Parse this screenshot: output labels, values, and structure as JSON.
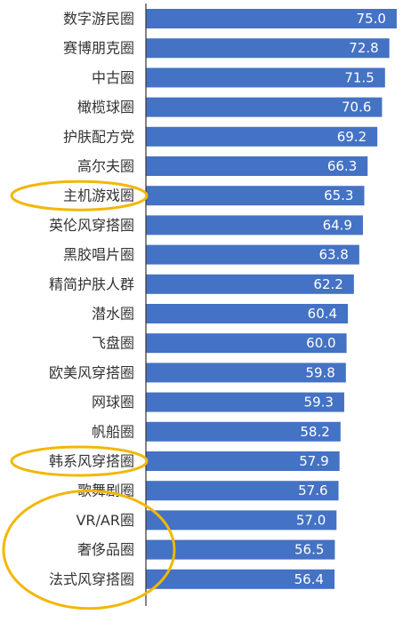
{
  "chart_data": {
    "type": "bar",
    "orientation": "horizontal",
    "categories": [
      "数字游民圈",
      "赛博朋克圈",
      "中古圈",
      "橄榄球圈",
      "护肤配方党",
      "高尔夫圈",
      "主机游戏圈",
      "英伦风穿搭圈",
      "黑胶唱片圈",
      "精简护肤人群",
      "潜水圈",
      "飞盘圈",
      "欧美风穿搭圈",
      "网球圈",
      "帆船圈",
      "韩系风穿搭圈",
      "歌舞剧圈",
      "VR/AR圈",
      "奢侈品圈",
      "法式风穿搭圈"
    ],
    "values": [
      75.0,
      72.8,
      71.5,
      70.6,
      69.2,
      66.3,
      65.3,
      64.9,
      63.8,
      62.2,
      60.4,
      60.0,
      59.8,
      59.3,
      58.2,
      57.9,
      57.6,
      57.0,
      56.5,
      56.4
    ],
    "value_labels": [
      "75.0",
      "72.8",
      "71.5",
      "70.6",
      "69.2",
      "66.3",
      "65.3",
      "64.9",
      "63.8",
      "62.2",
      "60.4",
      "60.0",
      "59.8",
      "59.3",
      "58.2",
      "57.9",
      "57.6",
      "57.0",
      "56.5",
      "56.4"
    ],
    "xlim": [
      0,
      79
    ],
    "bar_color": "#4472C4",
    "highlight_color": "#F2B705",
    "highlighted_categories": [
      "主机游戏圈",
      "韩系风穿搭圈",
      "VR/AR圈",
      "奢侈品圈",
      "法式风穿搭圈"
    ],
    "grid": false,
    "legend": "none"
  }
}
